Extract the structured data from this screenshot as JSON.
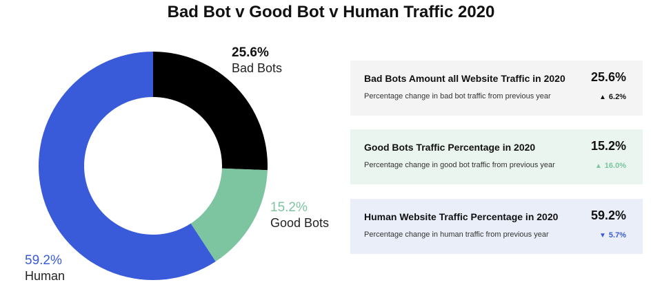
{
  "title": "Bad Bot v Good Bot v Human Traffic 2020",
  "chart_data": {
    "type": "pie",
    "variant": "donut",
    "title": "Bad Bot v Good Bot v Human Traffic 2020",
    "slices": [
      {
        "label": "Bad Bots",
        "value": 25.6,
        "value_label": "25.6%",
        "color": "#000000"
      },
      {
        "label": "Good Bots",
        "value": 15.2,
        "value_label": "15.2%",
        "color": "#7cc5a0"
      },
      {
        "label": "Human",
        "value": 59.2,
        "value_label": "59.2%",
        "color": "#3a5bd9"
      }
    ]
  },
  "cards": [
    {
      "title": "Bad Bots Amount all Website Traffic in 2020",
      "value": "25.6%",
      "subtitle": "Percentage change in bad bot traffic from previous year",
      "change": "6.2%",
      "direction": "up",
      "arrow": "▲",
      "bg": "#f4f4f4",
      "change_color": "#111111"
    },
    {
      "title": "Good Bots Traffic Percentage in 2020",
      "value": "15.2%",
      "subtitle": "Percentage change in good bot traffic from previous year",
      "change": "16.0%",
      "direction": "up",
      "arrow": "▲",
      "bg": "#e9f5ee",
      "change_color": "#7cc5a0"
    },
    {
      "title": "Human Website Traffic Percentage in 2020",
      "value": "59.2%",
      "subtitle": "Percentage change in human traffic from previous year",
      "change": "5.7%",
      "direction": "down",
      "arrow": "▼",
      "bg": "#eaeef9",
      "change_color": "#3a5bd9"
    }
  ]
}
